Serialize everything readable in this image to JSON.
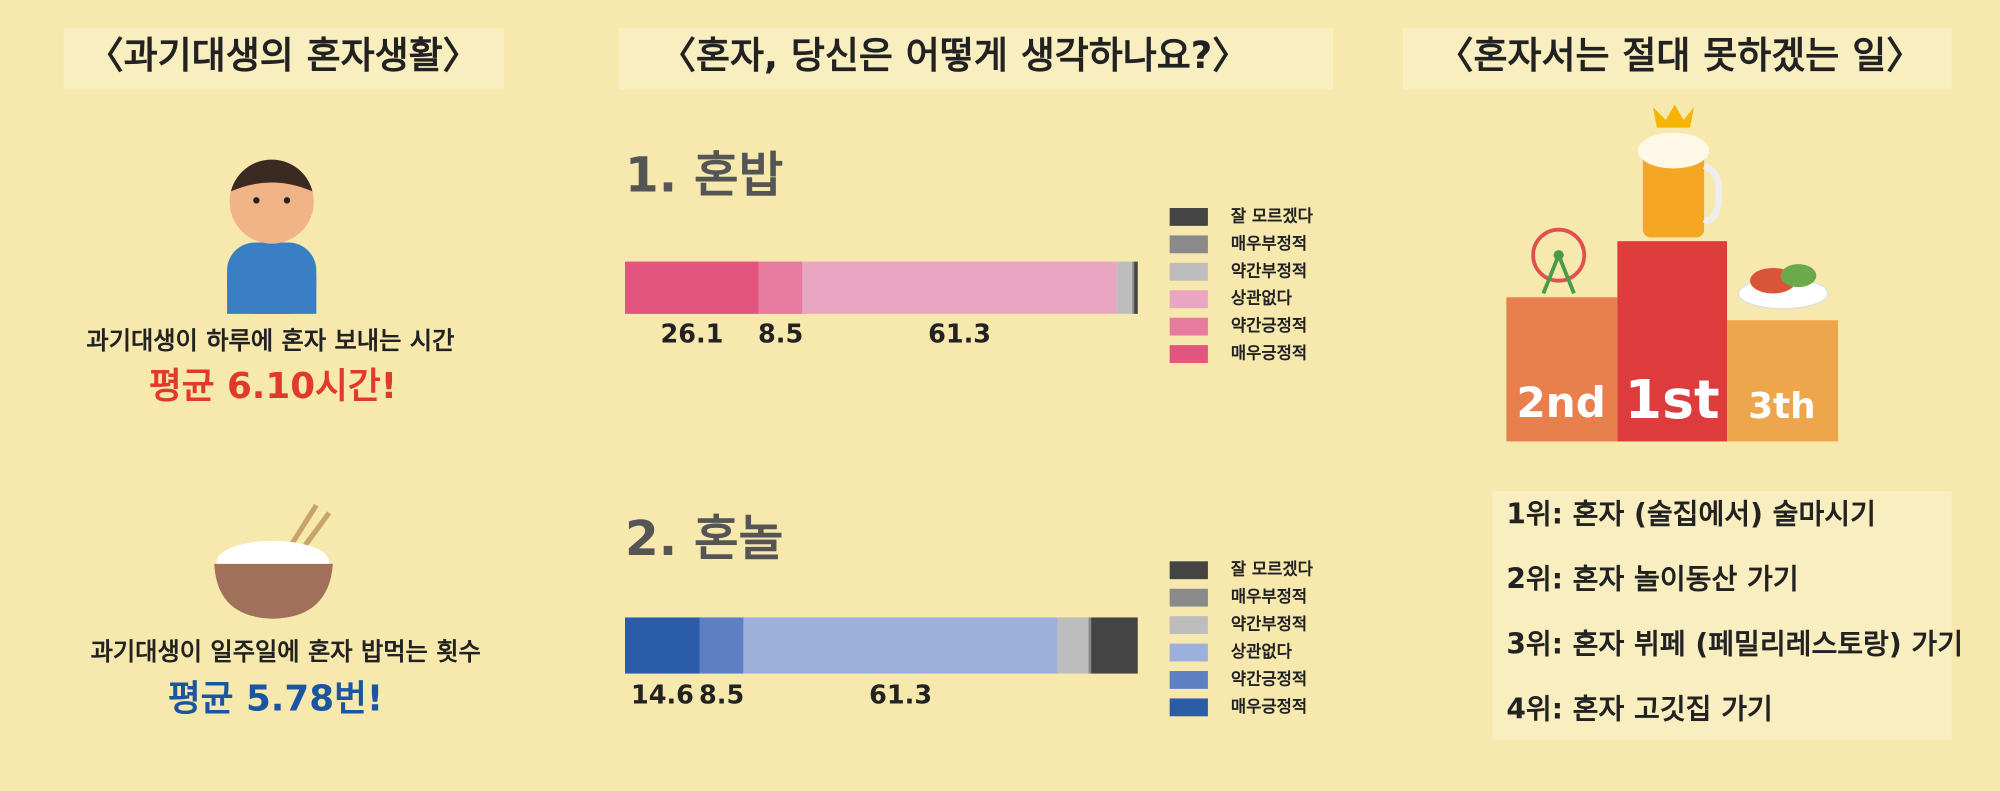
{
  "left": {
    "title": "〈과기대생의 혼자생활〉",
    "stat1_label": "과기대생이 하루에 혼자 보내는 시간",
    "stat1_value": "평균 6.10시간!",
    "stat2_label": "과기대생이 일주일에 혼자 밥먹는 횟수",
    "stat2_value": "평균 5.78번!"
  },
  "middle": {
    "title": "〈혼자, 당신은 어떻게 생각하나요?〉"
  },
  "chart_data": [
    {
      "type": "bar",
      "orientation": "horizontal",
      "stacked": true,
      "title": "1. 혼밥",
      "series": [
        {
          "name": "매우긍정적",
          "color": "#e2557f",
          "values": [
            26.1
          ],
          "value_labels": [
            "26.1"
          ]
        },
        {
          "name": "약간긍정적",
          "color": "#e67a9f",
          "values": [
            8.5
          ],
          "value_labels": [
            "8.5"
          ]
        },
        {
          "name": "상관없다",
          "color": "#e9a6c3",
          "values": [
            61.3
          ],
          "value_labels": [
            "61.3"
          ]
        },
        {
          "name": "약간부정적",
          "color": "#bdbdbd",
          "values": [
            3.0
          ]
        },
        {
          "name": "매우부정적",
          "color": "#8a8a8a",
          "values": [
            0.4
          ]
        },
        {
          "name": "잘 모르겠다",
          "color": "#444444",
          "values": [
            0.7
          ]
        }
      ]
    },
    {
      "type": "bar",
      "orientation": "horizontal",
      "stacked": true,
      "title": "2. 혼놀",
      "series": [
        {
          "name": "매우긍정적",
          "color": "#2a5ca8",
          "values": [
            14.6
          ],
          "value_labels": [
            "14.6"
          ]
        },
        {
          "name": "약간긍정적",
          "color": "#5d7fc4",
          "values": [
            8.5
          ],
          "value_labels": [
            "8.5"
          ]
        },
        {
          "name": "상관없다",
          "color": "#9db0dc",
          "values": [
            61.3
          ],
          "value_labels": [
            "61.3"
          ]
        },
        {
          "name": "약간부정적",
          "color": "#bdbdbd",
          "values": [
            6.0
          ]
        },
        {
          "name": "매우부정적",
          "color": "#8a8a8a",
          "values": [
            0.5
          ]
        },
        {
          "name": "잘 모르겠다",
          "color": "#444444",
          "values": [
            9.1
          ]
        }
      ]
    }
  ],
  "right": {
    "title": "〈혼자서는 절대 못하겠는 일〉",
    "podium": [
      "2nd",
      "1st",
      "3th"
    ],
    "ranking": [
      "1위: 혼자 (술집에서) 술마시기",
      "2위: 혼자 놀이동산 가기",
      "3위: 혼자 뷔페 (페밀리레스토랑) 가기",
      "4위: 혼자 고깃집 가기"
    ]
  }
}
